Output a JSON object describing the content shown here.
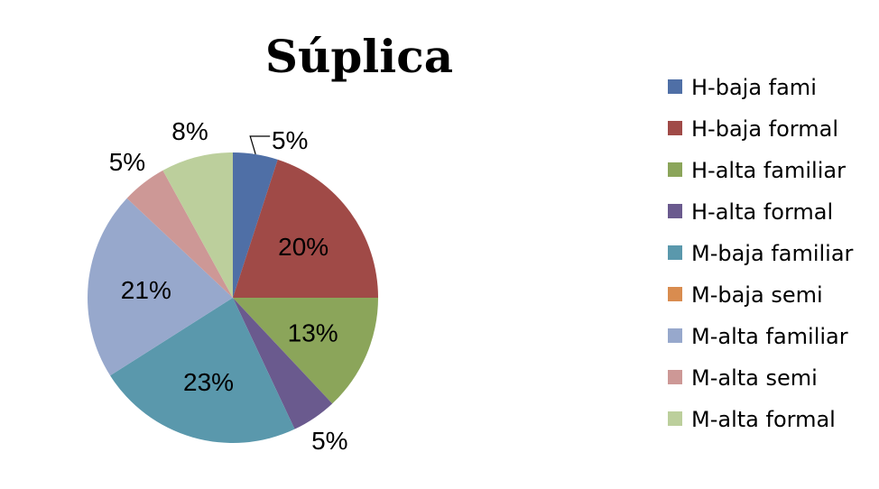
{
  "chart_data": {
    "type": "pie",
    "title": "Súplica",
    "slices": [
      {
        "label": "H-baja fami",
        "value": 5,
        "display": "5%",
        "color": "#4F6FA6"
      },
      {
        "label": "H-baja formal",
        "value": 20,
        "display": "20%",
        "color": "#A04A47"
      },
      {
        "label": "H-alta familiar",
        "value": 13,
        "display": "13%",
        "color": "#8BA55A"
      },
      {
        "label": "H-alta formal",
        "value": 5,
        "display": "5%",
        "color": "#6A5A8E"
      },
      {
        "label": "M-baja familiar",
        "value": 23,
        "display": "23%",
        "color": "#5A98AC"
      },
      {
        "label": "M-baja semi",
        "value": 0,
        "display": "",
        "color": "#D98C4F"
      },
      {
        "label": "M-alta familiar",
        "value": 21,
        "display": "21%",
        "color": "#97A8CC"
      },
      {
        "label": "M-alta semi",
        "value": 5,
        "display": "5%",
        "color": "#CD9896"
      },
      {
        "label": "M-alta formal",
        "value": 8,
        "display": "8%",
        "color": "#BCCF9C"
      }
    ],
    "legend_position": "right",
    "start_angle": "12 o'clock, clockwise"
  }
}
